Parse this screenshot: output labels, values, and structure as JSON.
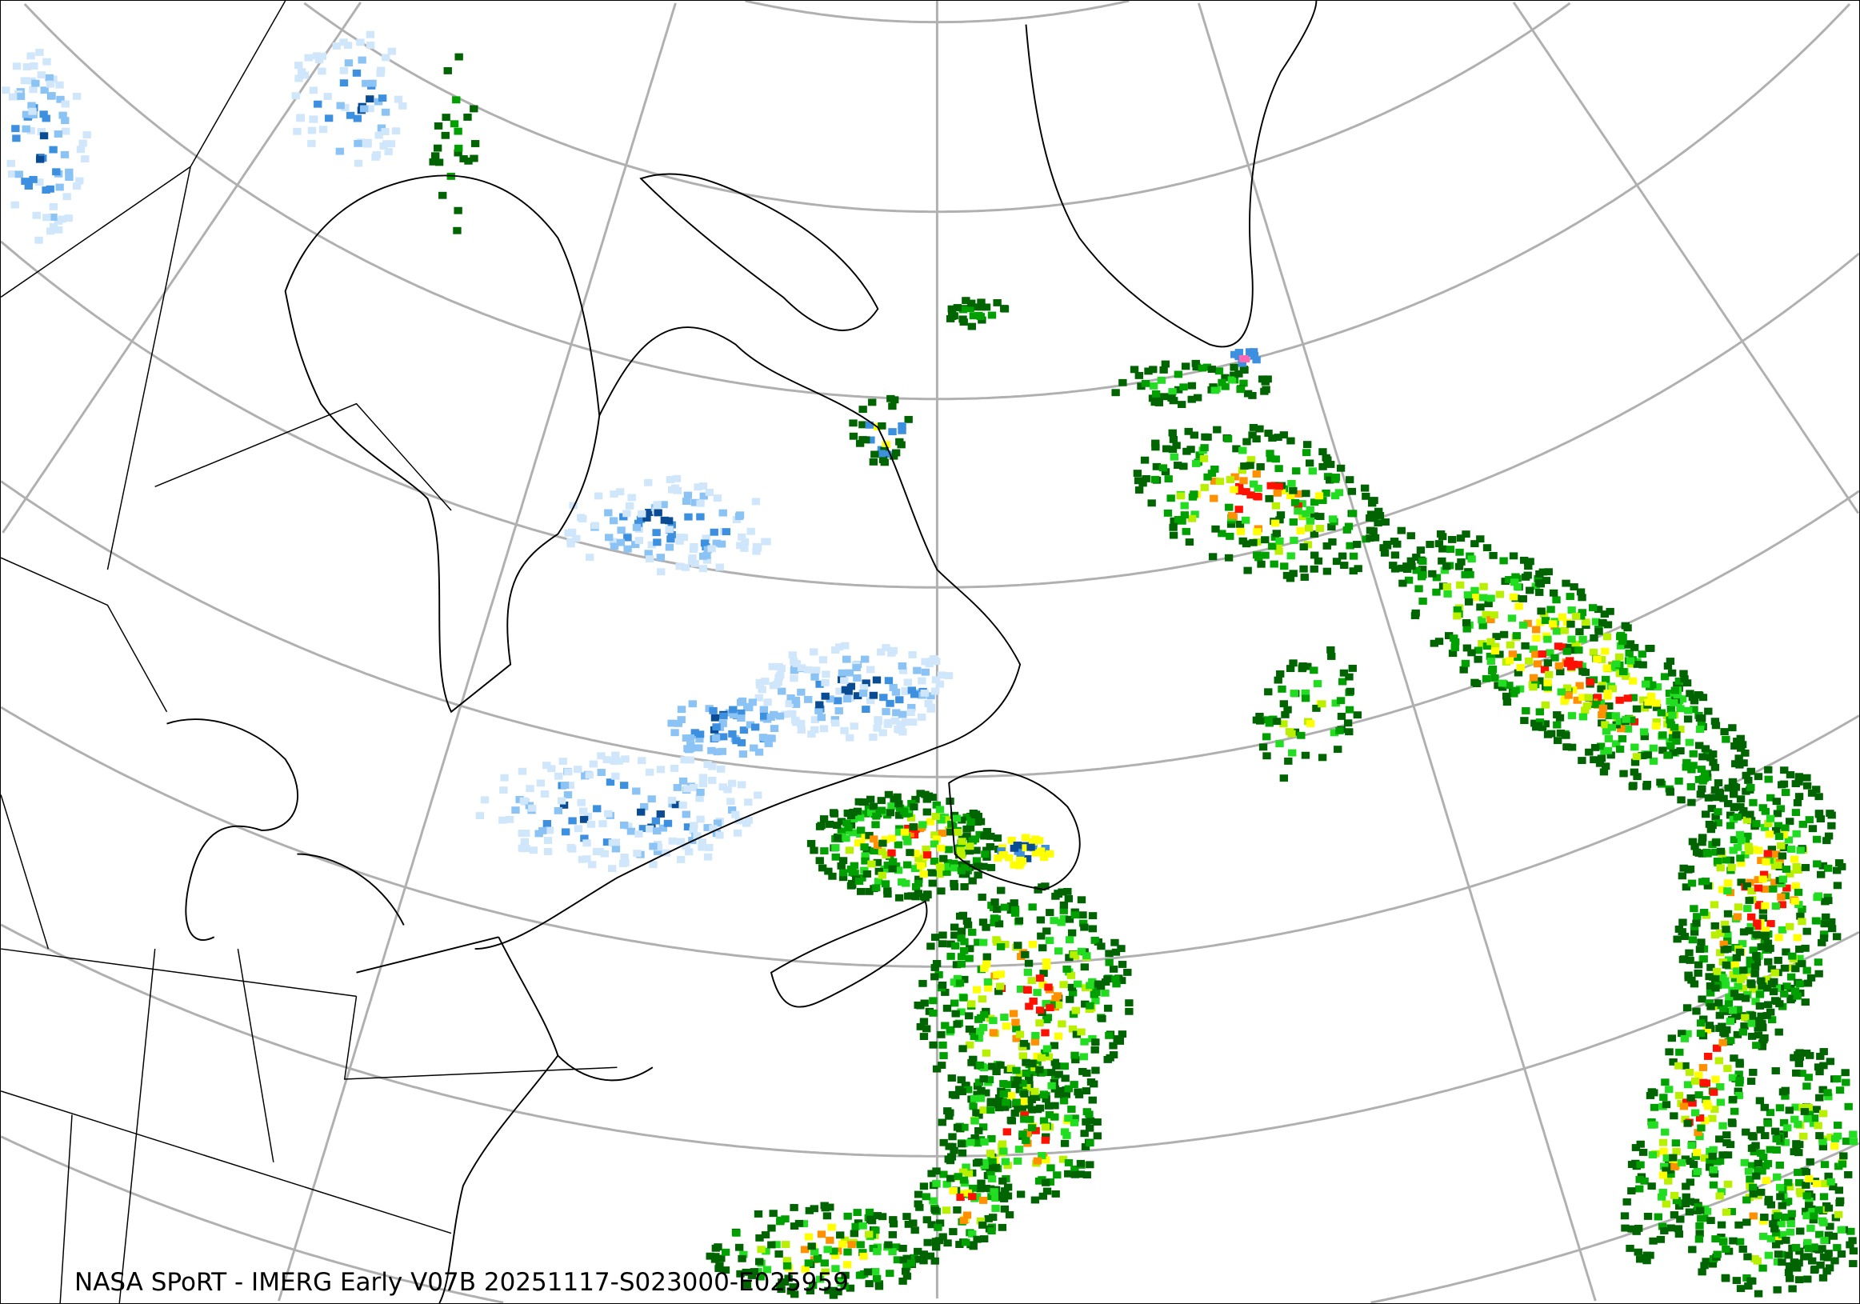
{
  "caption": "NASA SPoRT - IMERG Early V07B 20251117-S023000-E025959",
  "map": {
    "background": "#ffffff",
    "gridline_color": "#b0b0b0",
    "coastline_color": "#000000",
    "precip_palette": {
      "light_snow": "#cfe6fb",
      "snow": "#8cc3f5",
      "moderate_snow": "#3d8fe0",
      "heavy_snow": "#0a4c94",
      "mixed": "#ff69b4",
      "light_rain": "#00a000",
      "rain_dark": "#006400",
      "rain_green": "#22dd22",
      "rain_lime": "#b8f000",
      "rain_yellow": "#ffff00",
      "rain_orange": "#ff9000",
      "rain_red": "#ff1000"
    }
  }
}
